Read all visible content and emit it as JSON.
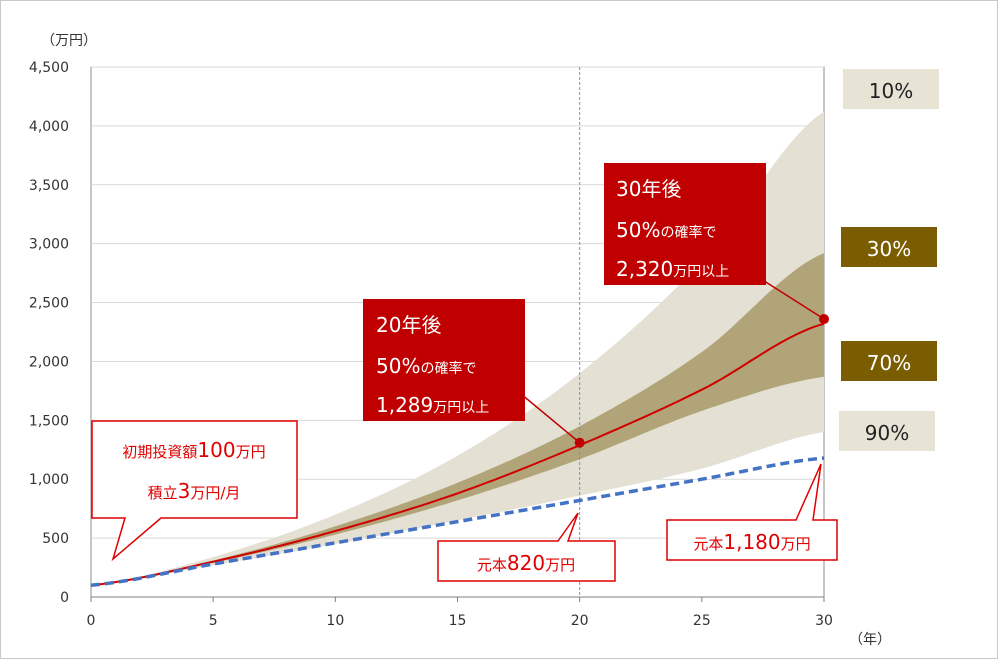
{
  "chart_data": {
    "type": "area",
    "y_unit": "（万円）",
    "x_unit": "（年）",
    "xlim": [
      0,
      30
    ],
    "ylim": [
      0,
      4500
    ],
    "x_ticks": [
      0,
      5,
      10,
      15,
      20,
      25,
      30
    ],
    "y_ticks": [
      0,
      500,
      1000,
      1500,
      2000,
      2500,
      3000,
      3500,
      4000,
      4500
    ],
    "y_tick_labels": [
      "0",
      "500",
      "1,000",
      "1,500",
      "2,000",
      "2,500",
      "3,000",
      "3,500",
      "4,000",
      "4,500"
    ],
    "gridlines": true,
    "x": [
      0,
      5,
      10,
      15,
      20,
      25,
      30
    ],
    "bands": [
      {
        "name": "10%-90%",
        "color": "#e4e1d4",
        "upper": [
          100,
          340,
          700,
          1200,
          1900,
          2850,
          4120
        ],
        "lower": [
          100,
          270,
          450,
          650,
          860,
          1090,
          1400
        ]
      },
      {
        "name": "30%-70%",
        "color": "#b1a478",
        "upper": [
          100,
          310,
          600,
          970,
          1450,
          2080,
          2920
        ],
        "lower": [
          100,
          290,
          530,
          820,
          1170,
          1580,
          1870
        ]
      }
    ],
    "series": [
      {
        "role": "median",
        "color": "#d00000",
        "values": [
          100,
          300,
          560,
          880,
          1289,
          1760,
          2320
        ]
      },
      {
        "role": "principal",
        "color": "#4472c4",
        "values": [
          100,
          280,
          460,
          640,
          820,
          1000,
          1180
        ]
      }
    ],
    "percentile_labels": [
      {
        "text": "10%",
        "bg": "#e7e3d5",
        "color": "#222222"
      },
      {
        "text": "30%",
        "bg": "#7a5d00",
        "color": "#ffffff"
      },
      {
        "text": "70%",
        "bg": "#7a5d00",
        "color": "#ffffff"
      },
      {
        "text": "90%",
        "bg": "#e7e3d5",
        "color": "#222222"
      }
    ],
    "marker_x": 20,
    "annotations": {
      "y30": {
        "line1": "30年後",
        "line2_big": "50%",
        "line2_small": "の確率で",
        "line3_big": "2,320",
        "line3_small": "万円以上",
        "point": [
          30,
          2360
        ]
      },
      "y20": {
        "line1": "20年後",
        "line2_big": "50%",
        "line2_small": "の確率で",
        "line3_big": "1,289",
        "line3_small": "万円以上",
        "point": [
          20,
          1310
        ]
      },
      "initial": {
        "p1": "初期投資額",
        "p1_big": "100",
        "p1_end": "万円",
        "p2": "積立",
        "p2_big": "3",
        "p2_end": "万円/月"
      },
      "principal20": {
        "small": "元本",
        "big": "820",
        "end": "万円"
      },
      "principal30": {
        "small": "元本",
        "big": "1,180",
        "end": "万円"
      }
    }
  }
}
